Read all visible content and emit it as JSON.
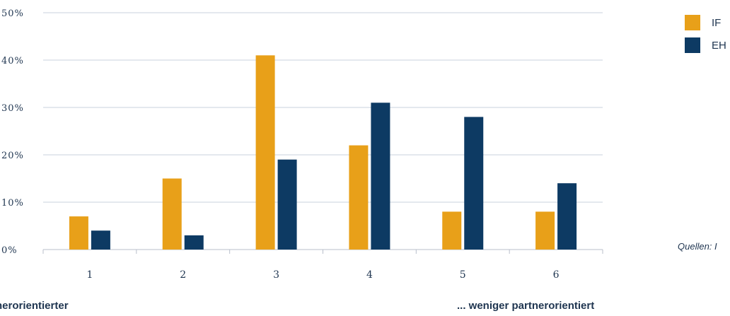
{
  "chart_data": {
    "type": "bar",
    "categories": [
      "1",
      "2",
      "3",
      "4",
      "5",
      "6"
    ],
    "series": [
      {
        "name": "IF",
        "values": [
          7,
          15,
          41,
          22,
          8,
          8
        ],
        "color": "#e8a019"
      },
      {
        "name": "EH",
        "values": [
          4,
          3,
          19,
          31,
          28,
          14
        ],
        "color": "#0d3a63"
      }
    ],
    "y_ticks": [
      "0%",
      "10%",
      "20%",
      "30%",
      "40%",
      "50%"
    ],
    "ylim": [
      0,
      50
    ],
    "grid": true,
    "legend": "top-right"
  },
  "source": "Quellen: I",
  "footer": {
    "left": "nerorientierter",
    "right": "... weniger partnerorientiert"
  }
}
